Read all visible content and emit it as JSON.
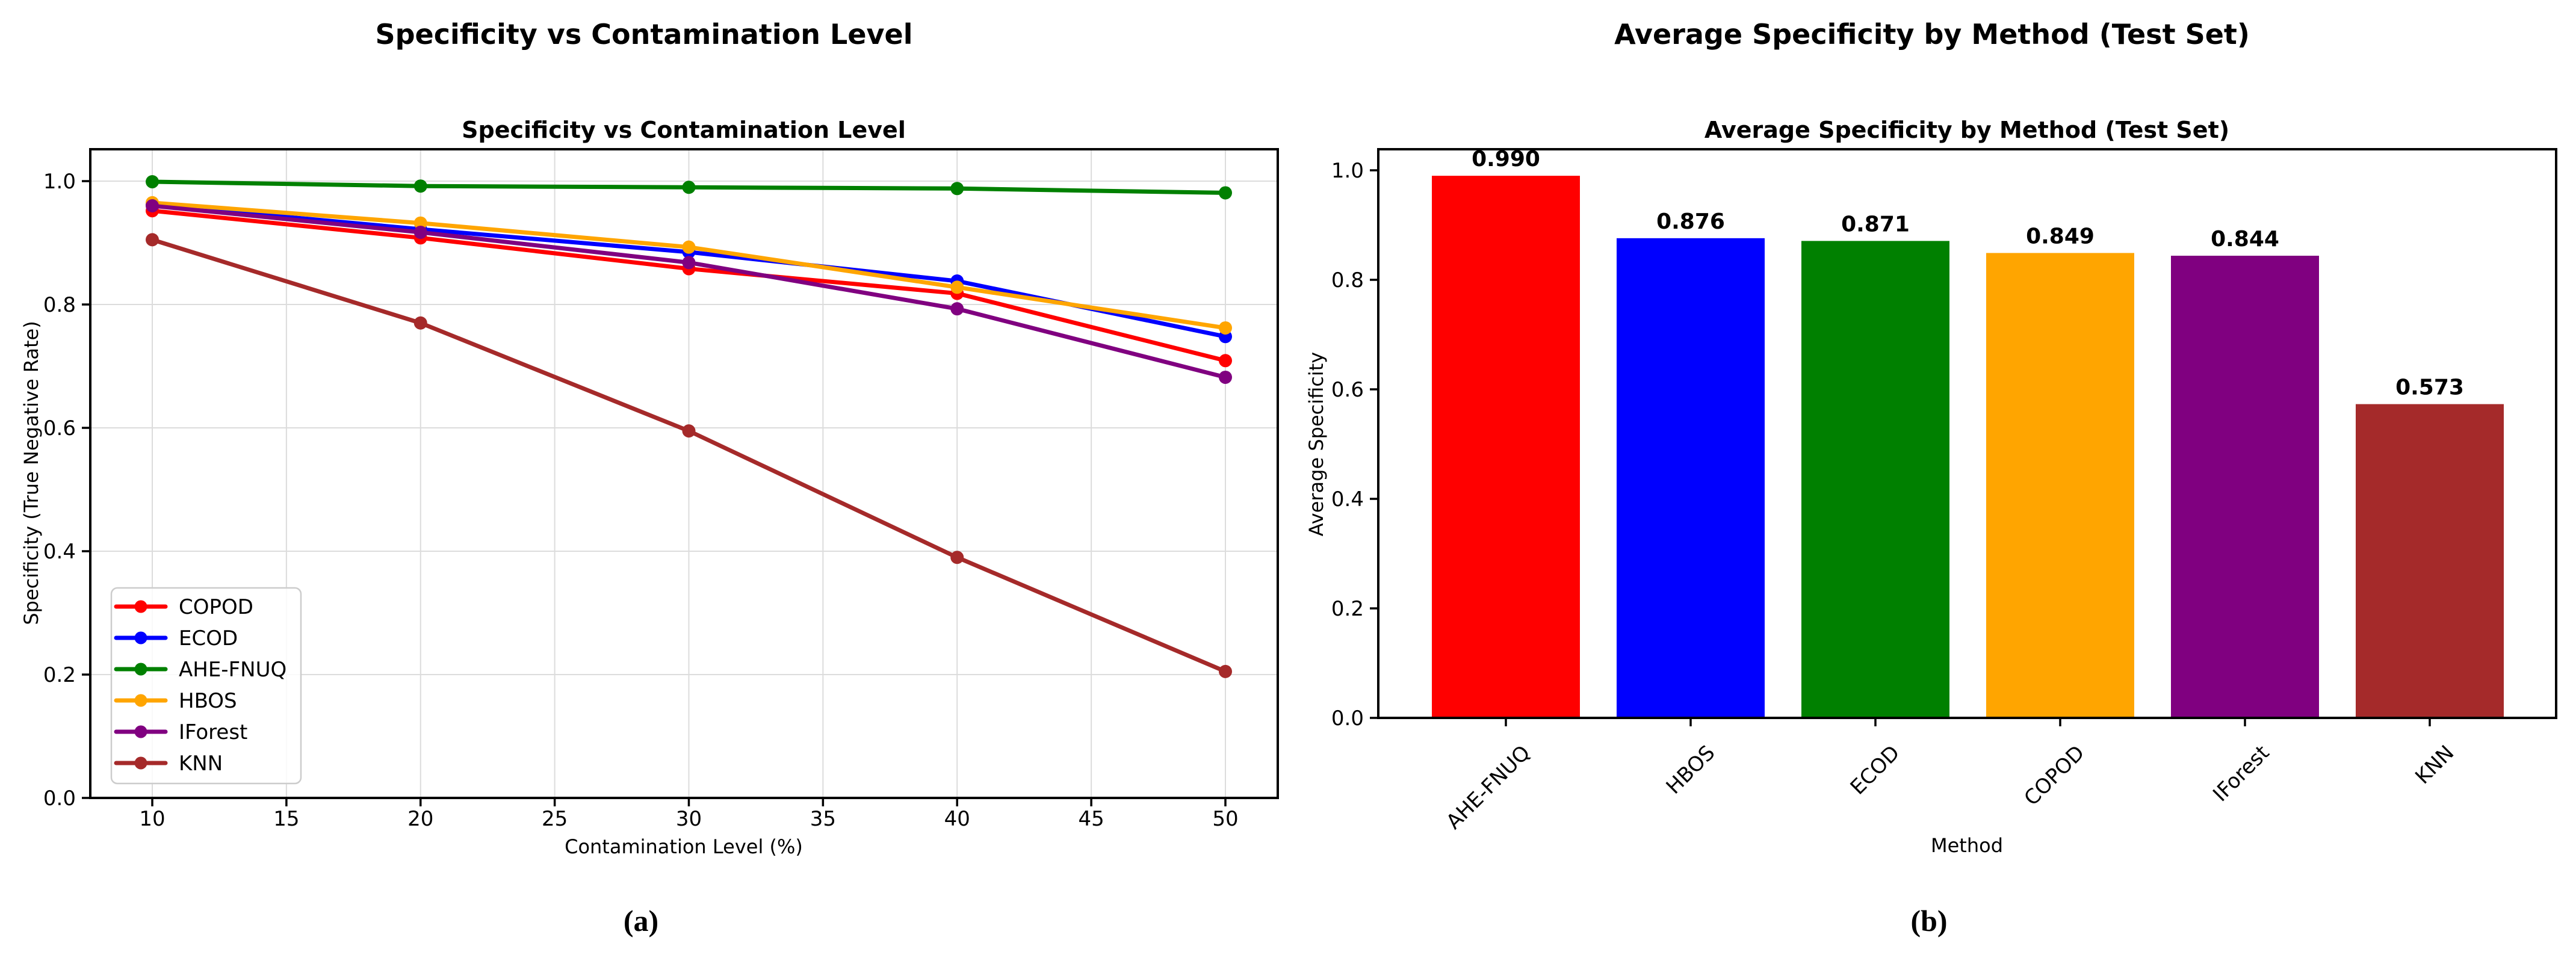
{
  "figure": {
    "background": "#ffffff",
    "panels": {
      "left": {
        "suptitle": "Specificity vs Contamination Level",
        "caption": "(a)"
      },
      "right": {
        "suptitle": "Average Specificity by Method (Test Set)",
        "caption": "(b)"
      }
    }
  },
  "chart_data": [
    {
      "type": "line",
      "panel": "left",
      "title": "Specificity vs Contamination Level",
      "xlabel": "Contamination Level (%)",
      "ylabel": "Specificity (True Negative Rate)",
      "x": [
        10,
        20,
        30,
        40,
        50
      ],
      "xticks": [
        10,
        15,
        20,
        25,
        30,
        35,
        40,
        45,
        50
      ],
      "yticks": [
        0.0,
        0.2,
        0.4,
        0.6,
        0.8,
        1.0
      ],
      "xlim": [
        7.7,
        52.0
      ],
      "ylim": [
        0.0,
        1.052
      ],
      "grid": true,
      "legend_position": "lower-left",
      "series": [
        {
          "name": "COPOD",
          "color": "#ff0000",
          "values": [
            0.952,
            0.908,
            0.858,
            0.818,
            0.709
          ]
        },
        {
          "name": "ECOD",
          "color": "#0000ff",
          "values": [
            0.962,
            0.922,
            0.885,
            0.838,
            0.748
          ]
        },
        {
          "name": "AHE-FNUQ",
          "color": "#008000",
          "values": [
            0.999,
            0.992,
            0.99,
            0.988,
            0.981
          ]
        },
        {
          "name": "HBOS",
          "color": "#ffa500",
          "values": [
            0.965,
            0.932,
            0.893,
            0.828,
            0.762
          ]
        },
        {
          "name": "IForest",
          "color": "#800080",
          "values": [
            0.96,
            0.917,
            0.868,
            0.793,
            0.682
          ]
        },
        {
          "name": "KNN",
          "color": "#a52a2a",
          "values": [
            0.905,
            0.77,
            0.595,
            0.39,
            0.205
          ]
        }
      ]
    },
    {
      "type": "bar",
      "panel": "right",
      "title": "Average Specificity by Method (Test Set)",
      "xlabel": "Method",
      "ylabel": "Average Specificity",
      "categories": [
        "AHE-FNUQ",
        "HBOS",
        "ECOD",
        "COPOD",
        "IForest",
        "KNN"
      ],
      "values": [
        0.99,
        0.876,
        0.871,
        0.849,
        0.844,
        0.573
      ],
      "bar_labels": [
        "0.990",
        "0.876",
        "0.871",
        "0.849",
        "0.844",
        "0.573"
      ],
      "colors": [
        "#ff0000",
        "#0000ff",
        "#008000",
        "#ffa500",
        "#800080",
        "#a52a2a"
      ],
      "yticks": [
        0.0,
        0.2,
        0.4,
        0.6,
        0.8,
        1.0
      ],
      "ylim": [
        0.0,
        1.038
      ],
      "grid": false,
      "tick_label_rotation": 45,
      "legend_position": "none"
    }
  ]
}
